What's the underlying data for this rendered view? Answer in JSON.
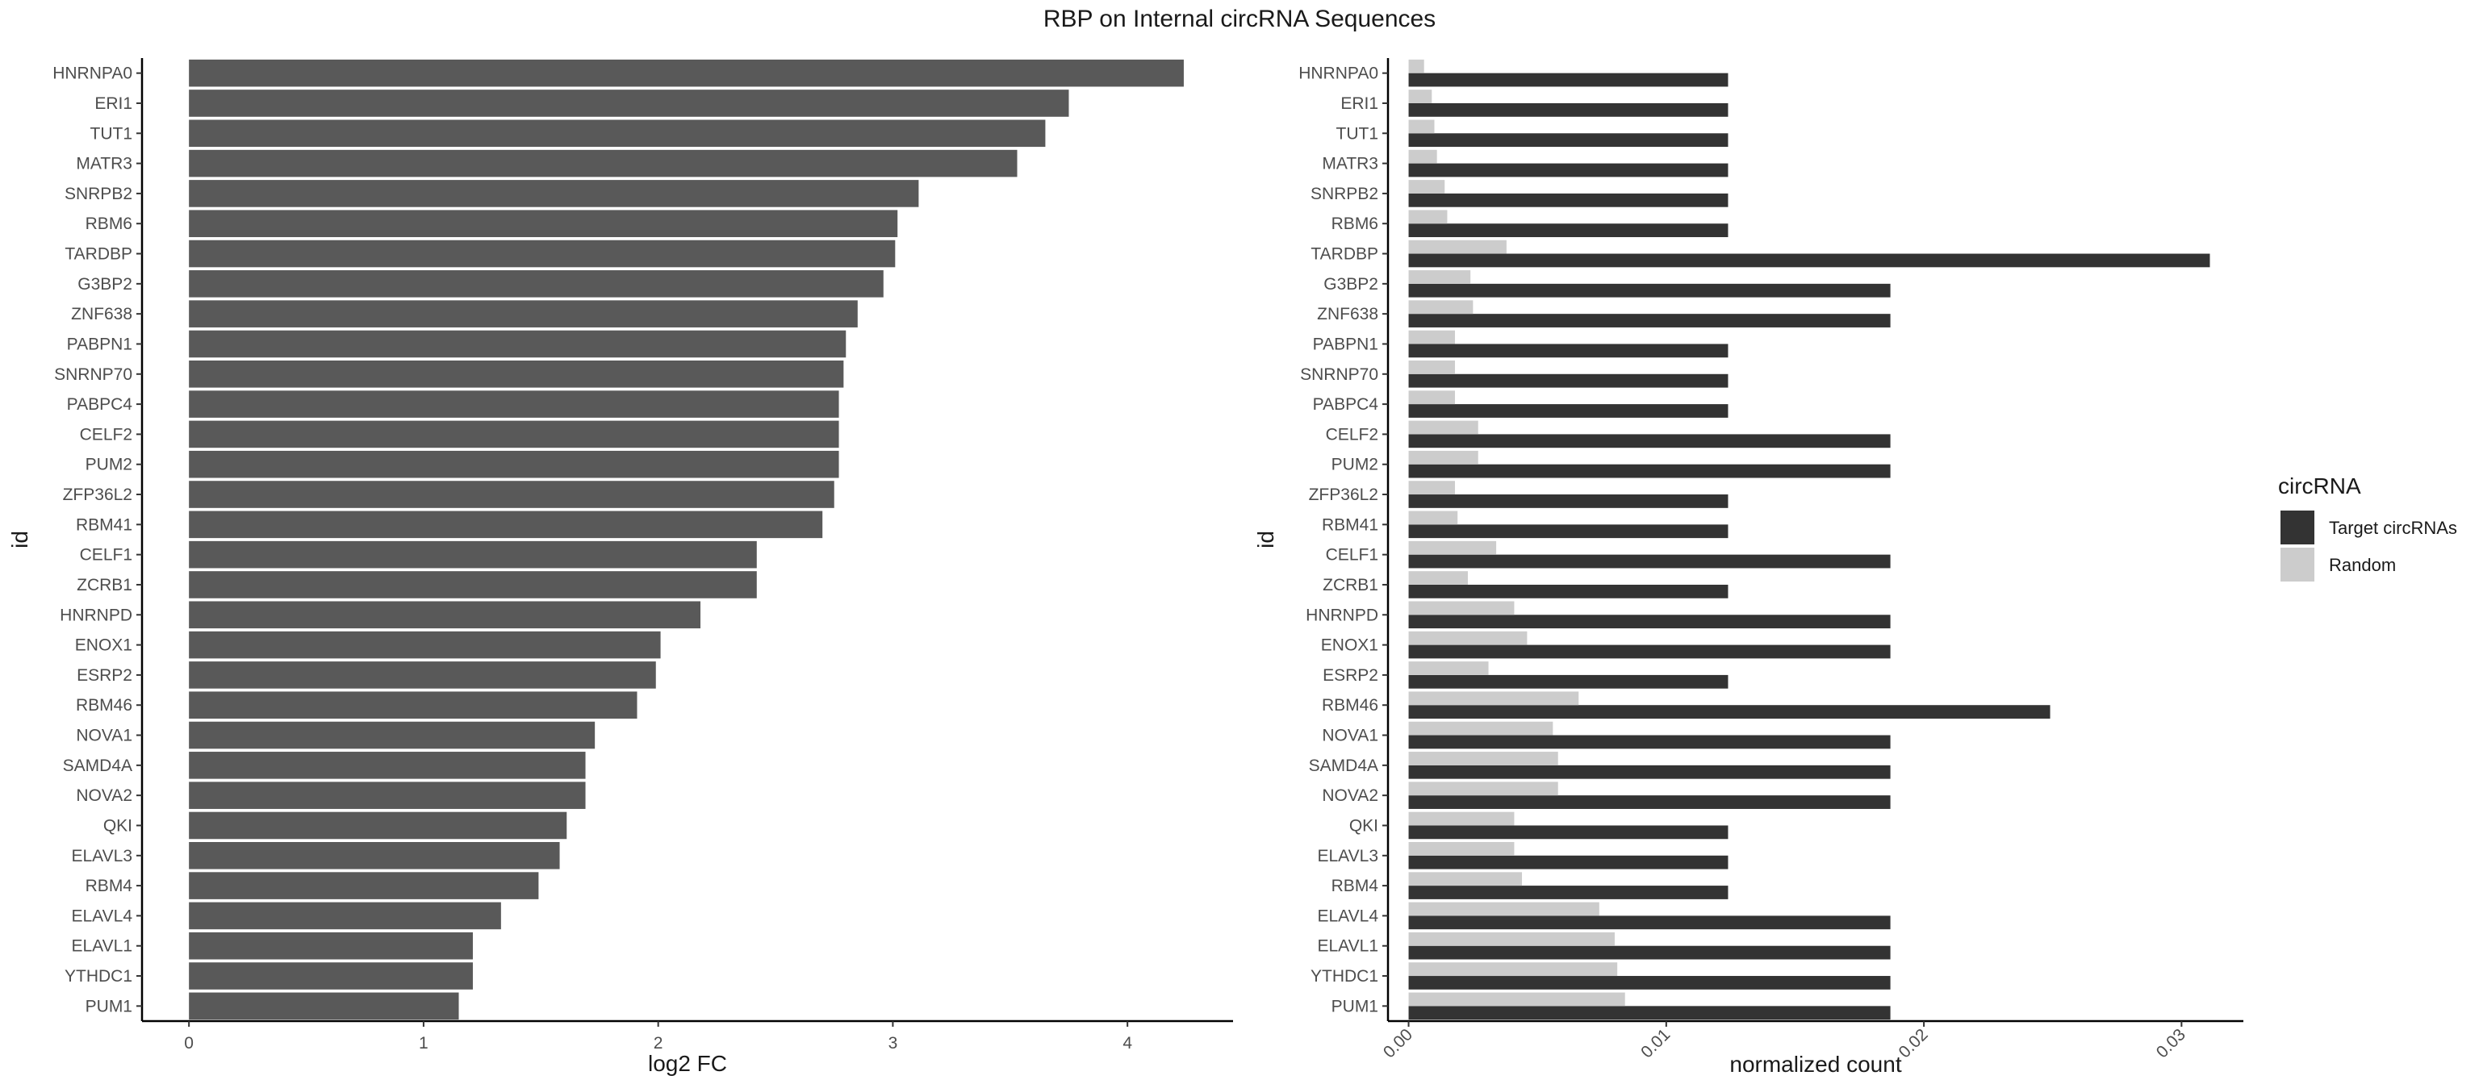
{
  "title": "RBP on Internal circRNA Sequences",
  "chart_data": [
    {
      "type": "bar",
      "orientation": "horizontal",
      "xlabel": "log2 FC",
      "ylabel": "id",
      "xlim": [
        -0.2,
        4.45
      ],
      "xticks": [
        0,
        1,
        2,
        3,
        4
      ],
      "color": "#595959",
      "categories": [
        "HNRNPA0",
        "ERI1",
        "TUT1",
        "MATR3",
        "SNRPB2",
        "RBM6",
        "TARDBP",
        "G3BP2",
        "ZNF638",
        "PABPN1",
        "SNRNP70",
        "PABPC4",
        "CELF2",
        "PUM2",
        "ZFP36L2",
        "RBM41",
        "CELF1",
        "ZCRB1",
        "HNRNPD",
        "ENOX1",
        "ESRP2",
        "RBM46",
        "NOVA1",
        "SAMD4A",
        "NOVA2",
        "QKI",
        "ELAVL3",
        "RBM4",
        "ELAVL4",
        "ELAVL1",
        "YTHDC1",
        "PUM1"
      ],
      "values": [
        4.24,
        3.75,
        3.65,
        3.53,
        3.11,
        3.02,
        3.01,
        2.96,
        2.85,
        2.8,
        2.79,
        2.77,
        2.77,
        2.77,
        2.75,
        2.7,
        2.42,
        2.42,
        2.18,
        2.01,
        1.99,
        1.91,
        1.73,
        1.69,
        1.69,
        1.61,
        1.58,
        1.49,
        1.33,
        1.21,
        1.21,
        1.15
      ]
    },
    {
      "type": "bar",
      "orientation": "horizontal",
      "grouped": true,
      "xlabel": "normalized count",
      "ylabel": "id",
      "xlim": [
        -0.0008,
        0.0324
      ],
      "xticks": [
        0.0,
        0.01,
        0.02,
        0.03
      ],
      "xtick_labels": [
        "0.00",
        "0.01",
        "0.02",
        "0.03"
      ],
      "categories": [
        "HNRNPA0",
        "ERI1",
        "TUT1",
        "MATR3",
        "SNRPB2",
        "RBM6",
        "TARDBP",
        "G3BP2",
        "ZNF638",
        "PABPN1",
        "SNRNP70",
        "PABPC4",
        "CELF2",
        "PUM2",
        "ZFP36L2",
        "RBM41",
        "CELF1",
        "ZCRB1",
        "HNRNPD",
        "ENOX1",
        "ESRP2",
        "RBM46",
        "NOVA1",
        "SAMD4A",
        "NOVA2",
        "QKI",
        "ELAVL3",
        "RBM4",
        "ELAVL4",
        "ELAVL1",
        "YTHDC1",
        "PUM1"
      ],
      "series": [
        {
          "name": "Target circRNAs",
          "color": "#333333",
          "values": [
            0.0124,
            0.0124,
            0.0124,
            0.0124,
            0.0124,
            0.0124,
            0.0311,
            0.0187,
            0.0187,
            0.0124,
            0.0124,
            0.0124,
            0.0187,
            0.0187,
            0.0124,
            0.0124,
            0.0187,
            0.0124,
            0.0187,
            0.0187,
            0.0124,
            0.0249,
            0.0187,
            0.0187,
            0.0187,
            0.0124,
            0.0124,
            0.0124,
            0.0187,
            0.0187,
            0.0187,
            0.0187
          ]
        },
        {
          "name": "Random",
          "color": "#cccccc",
          "values": [
            0.0006,
            0.0009,
            0.001,
            0.0011,
            0.0014,
            0.0015,
            0.0038,
            0.0024,
            0.0025,
            0.0018,
            0.0018,
            0.0018,
            0.0027,
            0.0027,
            0.0018,
            0.0019,
            0.0034,
            0.0023,
            0.0041,
            0.0046,
            0.0031,
            0.0066,
            0.0056,
            0.0058,
            0.0058,
            0.0041,
            0.0041,
            0.0044,
            0.0074,
            0.008,
            0.0081,
            0.0084
          ]
        }
      ],
      "legend": {
        "title": "circRNA",
        "position": "right",
        "entries": [
          "Target circRNAs",
          "Random"
        ]
      }
    }
  ]
}
